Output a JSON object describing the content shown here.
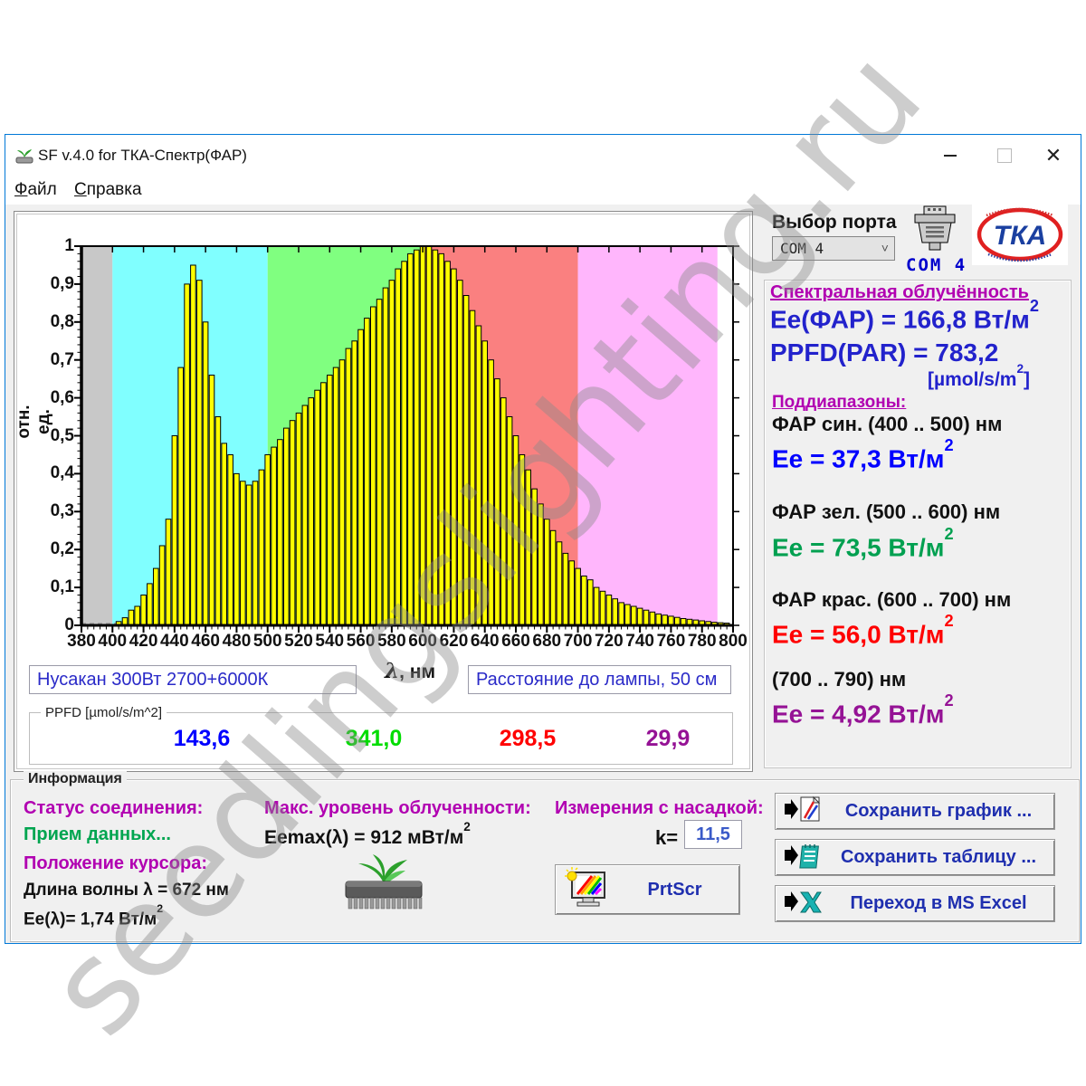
{
  "watermark": "seedlingslighting.ru",
  "window": {
    "title": "SF v.4.0 for ТКА-Спектр(ФАР)"
  },
  "titlebar": {
    "close_glyph": "✕"
  },
  "menu": {
    "file": {
      "first": "Ф",
      "rest": "айл"
    },
    "help": {
      "first": "С",
      "rest": "правка"
    }
  },
  "port": {
    "label": "Выбор порта",
    "selected": "COM 4",
    "com_text": "COM 4",
    "chevron": "˅"
  },
  "logo": {
    "tka": "ТКА"
  },
  "spectral": {
    "title": "Спектральная облучённость",
    "ee_far": "Ee(ФАР) = 166,8 Вт/м",
    "ppfd": "PPFD(PAR) = 783,2",
    "unit_pre": "[µmol/s/m",
    "unit_post": "]"
  },
  "sup2": "2",
  "subranges": {
    "title": "Поддиапазоны:",
    "items": [
      {
        "range": "ФАР син. (400 .. 500) нм",
        "value": "Ee = 37,3 Вт/м",
        "color": "#0000ff"
      },
      {
        "range": "ФАР зел. (500 .. 600) нм",
        "value": "Ee = 73,5 Вт/м",
        "color": "#00a050"
      },
      {
        "range": "ФАР крас. (600 .. 700) нм",
        "value": "Ee = 56,0 Вт/м",
        "color": "#ff0000"
      },
      {
        "range": "(700 .. 790) нм",
        "value": "Ee = 4,92 Вт/м",
        "color": "#951295"
      }
    ]
  },
  "inputs": {
    "lamp": "Нусакан 300Вт 2700+6000К",
    "distance": "Расстояние до лампы, 50 см"
  },
  "ppfd_box": {
    "label": "PPFD [µmol/s/m^2]",
    "values": [
      {
        "text": "143,6",
        "color": "#0000ff"
      },
      {
        "text": "341,0",
        "color": "#00dd00"
      },
      {
        "text": "298,5",
        "color": "#ff0000"
      },
      {
        "text": "29,9",
        "color": "#951295"
      }
    ]
  },
  "info": {
    "box_label": "Информация",
    "conn_label": "Статус соединения:",
    "conn_status": "Прием данных...",
    "cursor_label": "Положение курсора:",
    "wavelength": "Длина волны λ  = 672 нм",
    "ee_lambda": "Ee(λ)= 1,74 Вт/м",
    "max_label": "Макс. уровень облученности:",
    "eemax": "Eemax(λ) = 912 мВт/м",
    "nozzle_label": "Измерения с насадкой:",
    "k_label": "k=",
    "k_value": "11,5",
    "prtscr": "PrtScr",
    "save_graph": "Сохранить график ...",
    "save_table": "Сохранить таблицу ...",
    "excel": "Переход в MS Excel"
  },
  "chart_data": {
    "type": "bar",
    "title": "",
    "xlabel": "λ, нм",
    "ylabel": "отн. ед.",
    "xlim": [
      380,
      800
    ],
    "ylim": [
      0,
      1
    ],
    "grid": false,
    "bar_width_nm": 4,
    "x_ticks": [
      380,
      400,
      420,
      440,
      460,
      480,
      500,
      520,
      540,
      560,
      580,
      600,
      620,
      640,
      660,
      680,
      700,
      720,
      740,
      760,
      780,
      800
    ],
    "y_ticks": [
      {
        "v": 1.0,
        "label": "1"
      },
      {
        "v": 0.9,
        "label": "0,9"
      },
      {
        "v": 0.8,
        "label": "0,8"
      },
      {
        "v": 0.7,
        "label": "0,7"
      },
      {
        "v": 0.6,
        "label": "0,6"
      },
      {
        "v": 0.5,
        "label": "0,5"
      },
      {
        "v": 0.4,
        "label": "0,4"
      },
      {
        "v": 0.3,
        "label": "0,3"
      },
      {
        "v": 0.2,
        "label": "0,2"
      },
      {
        "v": 0.1,
        "label": "0,1"
      },
      {
        "v": 0.0,
        "label": "0"
      }
    ],
    "bands": [
      {
        "from": 380,
        "to": 400,
        "color": "#c8c8c8",
        "name": "UV-edge"
      },
      {
        "from": 400,
        "to": 500,
        "color": "#80ffff",
        "name": "blue"
      },
      {
        "from": 500,
        "to": 600,
        "color": "#80ff80",
        "name": "green"
      },
      {
        "from": 600,
        "to": 700,
        "color": "#fa8080",
        "name": "red"
      },
      {
        "from": 700,
        "to": 790,
        "color": "#ffb6fc",
        "name": "far-red"
      },
      {
        "from": 790,
        "to": 800,
        "color": "#ffffff",
        "name": "edge"
      }
    ],
    "bars": [
      [
        404,
        0.01
      ],
      [
        408,
        0.02
      ],
      [
        412,
        0.04
      ],
      [
        416,
        0.05
      ],
      [
        420,
        0.08
      ],
      [
        424,
        0.11
      ],
      [
        428,
        0.15
      ],
      [
        432,
        0.21
      ],
      [
        436,
        0.28
      ],
      [
        440,
        0.5
      ],
      [
        444,
        0.68
      ],
      [
        448,
        0.9
      ],
      [
        452,
        0.95
      ],
      [
        456,
        0.91
      ],
      [
        460,
        0.8
      ],
      [
        464,
        0.66
      ],
      [
        468,
        0.55
      ],
      [
        472,
        0.48
      ],
      [
        476,
        0.45
      ],
      [
        480,
        0.4
      ],
      [
        484,
        0.38
      ],
      [
        488,
        0.37
      ],
      [
        492,
        0.38
      ],
      [
        496,
        0.41
      ],
      [
        500,
        0.45
      ],
      [
        504,
        0.47
      ],
      [
        508,
        0.49
      ],
      [
        512,
        0.52
      ],
      [
        516,
        0.54
      ],
      [
        520,
        0.56
      ],
      [
        524,
        0.58
      ],
      [
        528,
        0.6
      ],
      [
        532,
        0.62
      ],
      [
        536,
        0.64
      ],
      [
        540,
        0.66
      ],
      [
        544,
        0.68
      ],
      [
        548,
        0.7
      ],
      [
        552,
        0.73
      ],
      [
        556,
        0.75
      ],
      [
        560,
        0.78
      ],
      [
        564,
        0.81
      ],
      [
        568,
        0.84
      ],
      [
        572,
        0.86
      ],
      [
        576,
        0.89
      ],
      [
        580,
        0.91
      ],
      [
        584,
        0.94
      ],
      [
        588,
        0.96
      ],
      [
        592,
        0.98
      ],
      [
        596,
        0.99
      ],
      [
        600,
        1.0
      ],
      [
        604,
        1.0
      ],
      [
        608,
        0.99
      ],
      [
        612,
        0.98
      ],
      [
        616,
        0.96
      ],
      [
        620,
        0.94
      ],
      [
        624,
        0.91
      ],
      [
        628,
        0.87
      ],
      [
        632,
        0.83
      ],
      [
        636,
        0.79
      ],
      [
        640,
        0.75
      ],
      [
        644,
        0.7
      ],
      [
        648,
        0.65
      ],
      [
        652,
        0.6
      ],
      [
        656,
        0.55
      ],
      [
        660,
        0.5
      ],
      [
        664,
        0.45
      ],
      [
        668,
        0.41
      ],
      [
        672,
        0.36
      ],
      [
        676,
        0.32
      ],
      [
        680,
        0.28
      ],
      [
        684,
        0.25
      ],
      [
        688,
        0.22
      ],
      [
        692,
        0.19
      ],
      [
        696,
        0.17
      ],
      [
        700,
        0.15
      ],
      [
        704,
        0.13
      ],
      [
        708,
        0.12
      ],
      [
        712,
        0.1
      ],
      [
        716,
        0.09
      ],
      [
        720,
        0.08
      ],
      [
        724,
        0.07
      ],
      [
        728,
        0.06
      ],
      [
        732,
        0.055
      ],
      [
        736,
        0.05
      ],
      [
        740,
        0.045
      ],
      [
        744,
        0.04
      ],
      [
        748,
        0.035
      ],
      [
        752,
        0.03
      ],
      [
        756,
        0.027
      ],
      [
        760,
        0.024
      ],
      [
        764,
        0.021
      ],
      [
        768,
        0.018
      ],
      [
        772,
        0.016
      ],
      [
        776,
        0.014
      ],
      [
        780,
        0.012
      ],
      [
        784,
        0.01
      ],
      [
        788,
        0.008
      ],
      [
        792,
        0.007
      ],
      [
        796,
        0.006
      ]
    ]
  }
}
